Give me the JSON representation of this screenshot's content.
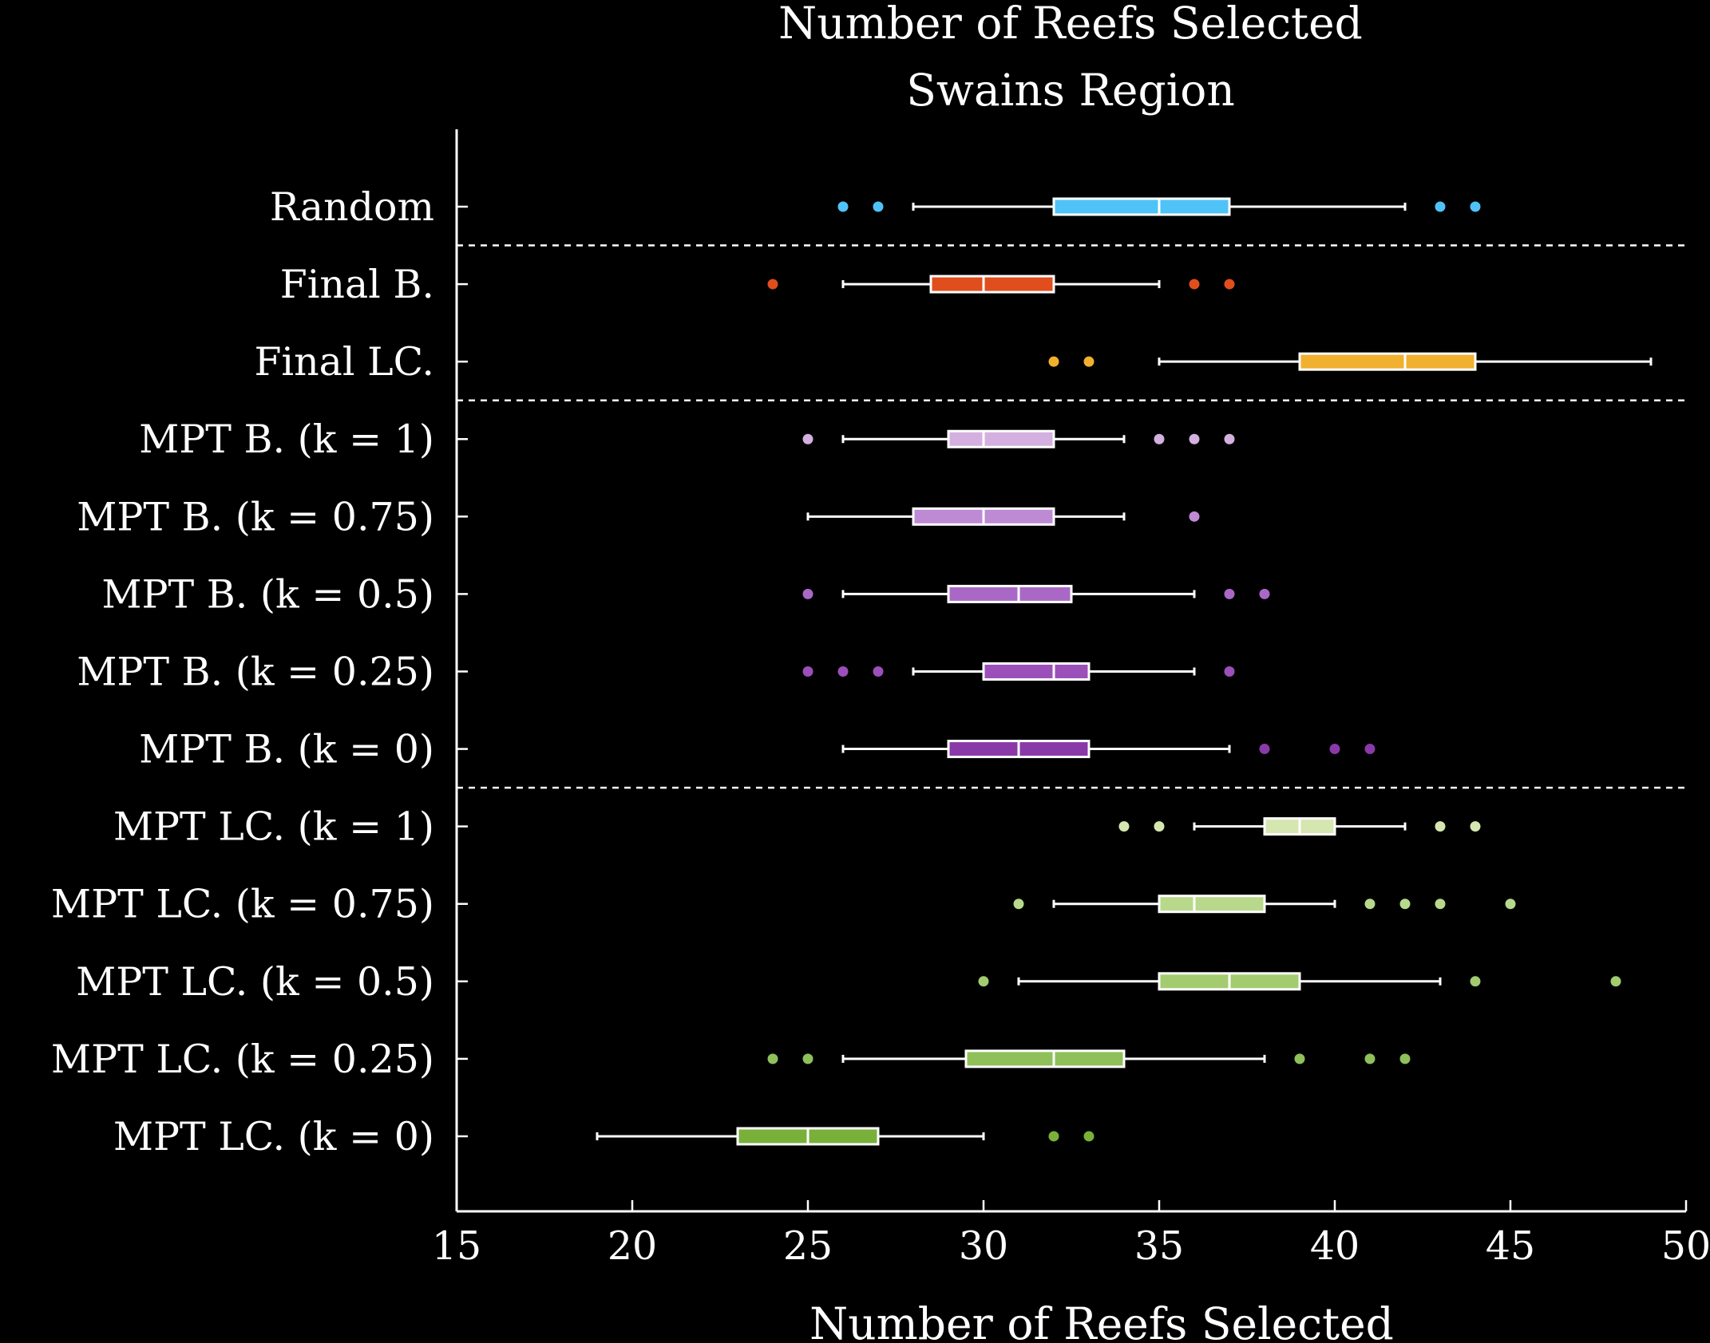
{
  "chart_data": {
    "type": "boxplot",
    "orientation": "horizontal",
    "title": "Number of Reefs Selected",
    "subtitle": "Swains Region",
    "xlabel": "Number of Reefs Selected",
    "ylabel": "",
    "xlim": [
      15,
      50
    ],
    "xticks": [
      15,
      20,
      25,
      30,
      35,
      40,
      45,
      50
    ],
    "grid": false,
    "background": "#000000",
    "foreground": "#ffffff",
    "separators_after": [
      "Random",
      "Final LC.",
      "MPT B. (k = 0)"
    ],
    "series": [
      {
        "name": "Random",
        "color": "#4fc3f7",
        "whisker_low": 28,
        "q1": 32,
        "median": 35,
        "q3": 37,
        "whisker_high": 42,
        "outliers": [
          26,
          27,
          43,
          44
        ]
      },
      {
        "name": "Final B.",
        "color": "#e04e1e",
        "whisker_low": 26,
        "q1": 28.5,
        "median": 30,
        "q3": 32,
        "whisker_high": 35,
        "outliers": [
          24,
          36,
          37
        ]
      },
      {
        "name": "Final LC.",
        "color": "#f2b02f",
        "whisker_low": 35,
        "q1": 39,
        "median": 42,
        "q3": 44,
        "whisker_high": 49,
        "outliers": [
          32,
          33
        ]
      },
      {
        "name": "MPT B. (k = 1)",
        "color": "#d4b0e0",
        "whisker_low": 26,
        "q1": 29,
        "median": 30,
        "q3": 32,
        "whisker_high": 34,
        "outliers": [
          25,
          35,
          36,
          37
        ]
      },
      {
        "name": "MPT B. (k = 0.75)",
        "color": "#bf8ad4",
        "whisker_low": 25,
        "q1": 28,
        "median": 30,
        "q3": 32,
        "whisker_high": 34,
        "outliers": [
          36
        ]
      },
      {
        "name": "MPT B. (k = 0.5)",
        "color": "#aa68c6",
        "whisker_low": 26,
        "q1": 29,
        "median": 31,
        "q3": 32.5,
        "whisker_high": 36,
        "outliers": [
          25,
          37,
          38
        ]
      },
      {
        "name": "MPT B. (k = 0.25)",
        "color": "#9b4fb8",
        "whisker_low": 28,
        "q1": 30,
        "median": 32,
        "q3": 33,
        "whisker_high": 36,
        "outliers": [
          25,
          26,
          27,
          37
        ]
      },
      {
        "name": "MPT B. (k = 0)",
        "color": "#8a3aa8",
        "whisker_low": 26,
        "q1": 29,
        "median": 31,
        "q3": 33,
        "whisker_high": 37,
        "outliers": [
          38,
          40,
          41
        ]
      },
      {
        "name": "MPT LC. (k = 1)",
        "color": "#d6e6b0",
        "whisker_low": 36,
        "q1": 38,
        "median": 39,
        "q3": 40,
        "whisker_high": 42,
        "outliers": [
          34,
          35,
          43,
          44
        ]
      },
      {
        "name": "MPT LC. (k = 0.75)",
        "color": "#b8d98c",
        "whisker_low": 32,
        "q1": 35,
        "median": 36,
        "q3": 38,
        "whisker_high": 40,
        "outliers": [
          31,
          41,
          42,
          43,
          45
        ]
      },
      {
        "name": "MPT LC. (k = 0.5)",
        "color": "#a3cc70",
        "whisker_low": 31,
        "q1": 35,
        "median": 37,
        "q3": 39,
        "whisker_high": 43,
        "outliers": [
          30,
          44,
          48
        ]
      },
      {
        "name": "MPT LC. (k = 0.25)",
        "color": "#8fc05a",
        "whisker_low": 26,
        "q1": 29.5,
        "median": 32,
        "q3": 34,
        "whisker_high": 38,
        "outliers": [
          24,
          25,
          39,
          41,
          42
        ]
      },
      {
        "name": "MPT LC. (k = 0)",
        "color": "#79b03a",
        "whisker_low": 19,
        "q1": 23,
        "median": 25,
        "q3": 27,
        "whisker_high": 30,
        "outliers": [
          32,
          33
        ]
      }
    ]
  }
}
